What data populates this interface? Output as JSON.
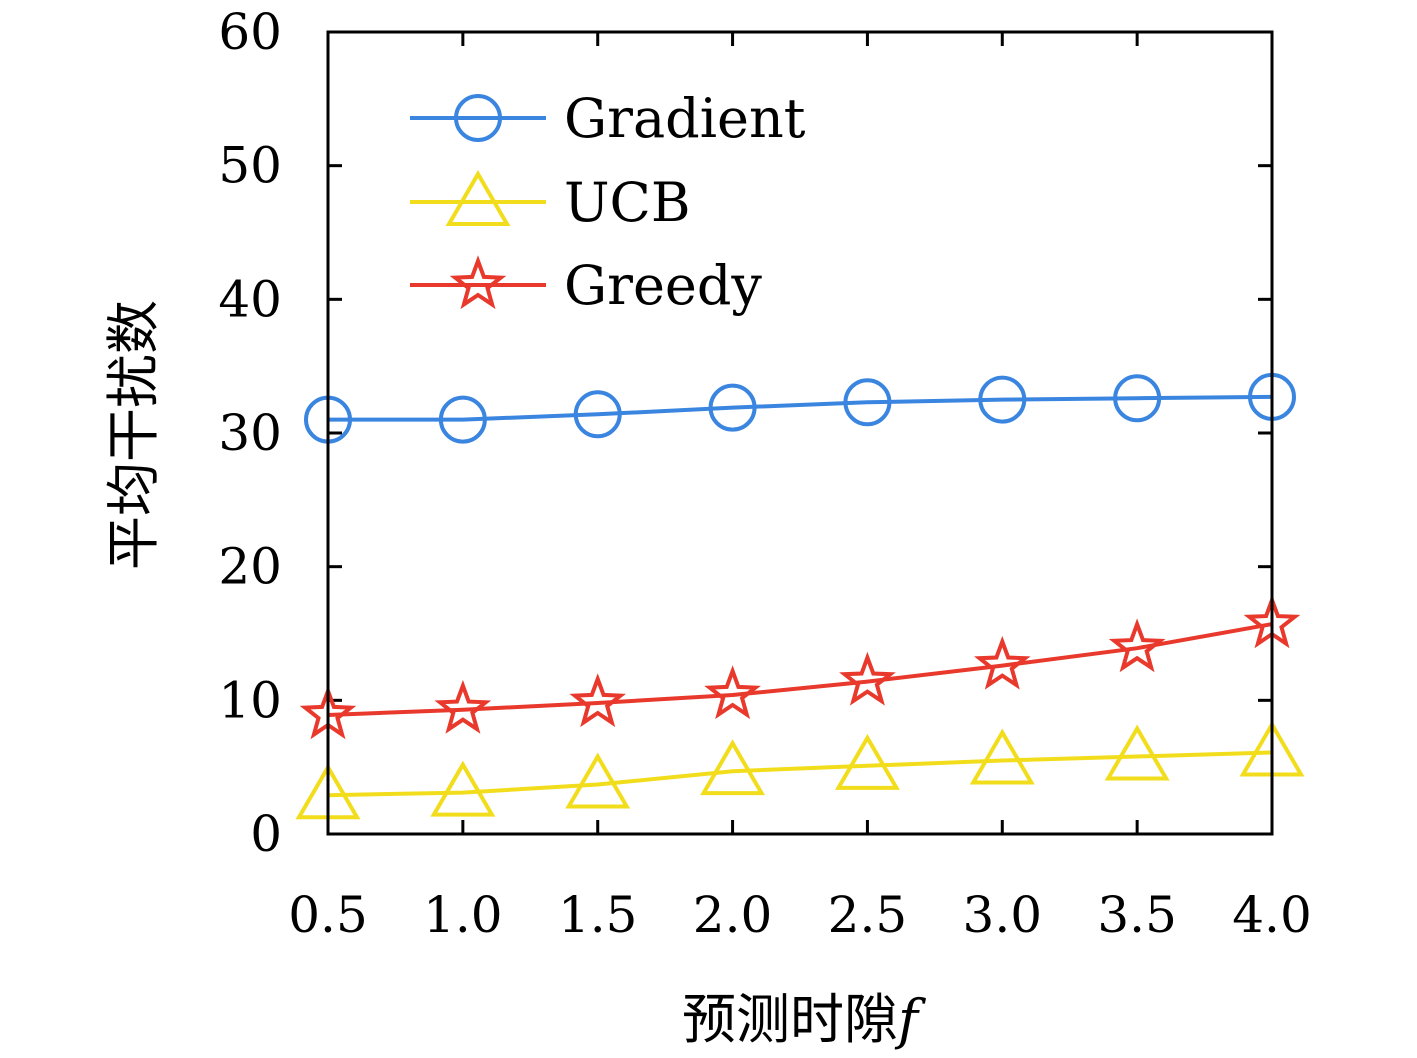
{
  "chart_data": {
    "type": "line",
    "title": "",
    "xlabel": "预测时隙",
    "xlabel_var": "f",
    "ylabel": "平均干扰数",
    "x": [
      0.5,
      1.0,
      1.5,
      2.0,
      2.5,
      3.0,
      3.5,
      4.0
    ],
    "x_tick_labels": [
      "0.5",
      "1.0",
      "1.5",
      "2.0",
      "2.5",
      "3.0",
      "3.5",
      "4.0"
    ],
    "xlim": [
      0.5,
      4.0
    ],
    "ylim": [
      0,
      60
    ],
    "y_ticks": [
      0,
      10,
      20,
      30,
      40,
      50,
      60
    ],
    "y_tick_labels": [
      "0",
      "10",
      "20",
      "30",
      "40",
      "50",
      "60"
    ],
    "grid": false,
    "legend_position": "top-left",
    "series": [
      {
        "name": "Gradient",
        "color": "#3a85e0",
        "marker": "circle",
        "values": [
          31.0,
          31.0,
          31.4,
          31.9,
          32.3,
          32.5,
          32.6,
          32.7
        ]
      },
      {
        "name": "UCB",
        "color": "#f2dd1c",
        "marker": "triangle",
        "values": [
          2.9,
          3.1,
          3.7,
          4.7,
          5.1,
          5.5,
          5.8,
          6.1
        ]
      },
      {
        "name": "Greedy",
        "color": "#e8392c",
        "marker": "star",
        "values": [
          8.9,
          9.3,
          9.8,
          10.4,
          11.4,
          12.6,
          13.9,
          15.7
        ]
      }
    ]
  }
}
